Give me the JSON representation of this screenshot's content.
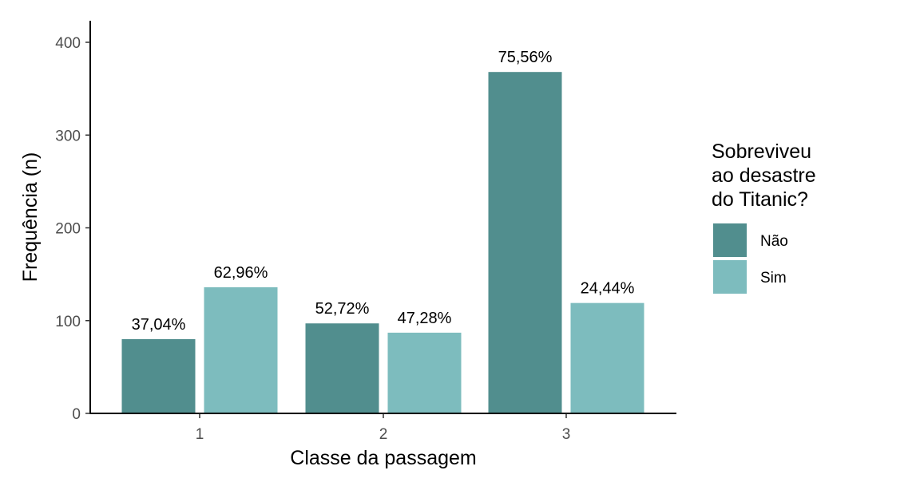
{
  "chart_data": {
    "type": "bar",
    "categories": [
      "1",
      "2",
      "3"
    ],
    "series": [
      {
        "name": "Não",
        "color": "#518e8e",
        "values": [
          80,
          97,
          368
        ],
        "labels": [
          "37,04%",
          "52,72%",
          "75,56%"
        ]
      },
      {
        "name": "Sim",
        "color": "#7dbcbe",
        "values": [
          136,
          87,
          119
        ],
        "labels": [
          "62,96%",
          "47,28%",
          "24,44%"
        ]
      }
    ],
    "title": "",
    "xlabel": "Classe da passagem",
    "ylabel": "Frequência (n)",
    "ylim": [
      0,
      420
    ],
    "yticks": [
      0,
      100,
      200,
      300,
      400
    ],
    "grid": false,
    "legend": {
      "position": "right",
      "title_lines": [
        "Sobreviveu",
        "ao desastre",
        "do Titanic?"
      ]
    }
  }
}
